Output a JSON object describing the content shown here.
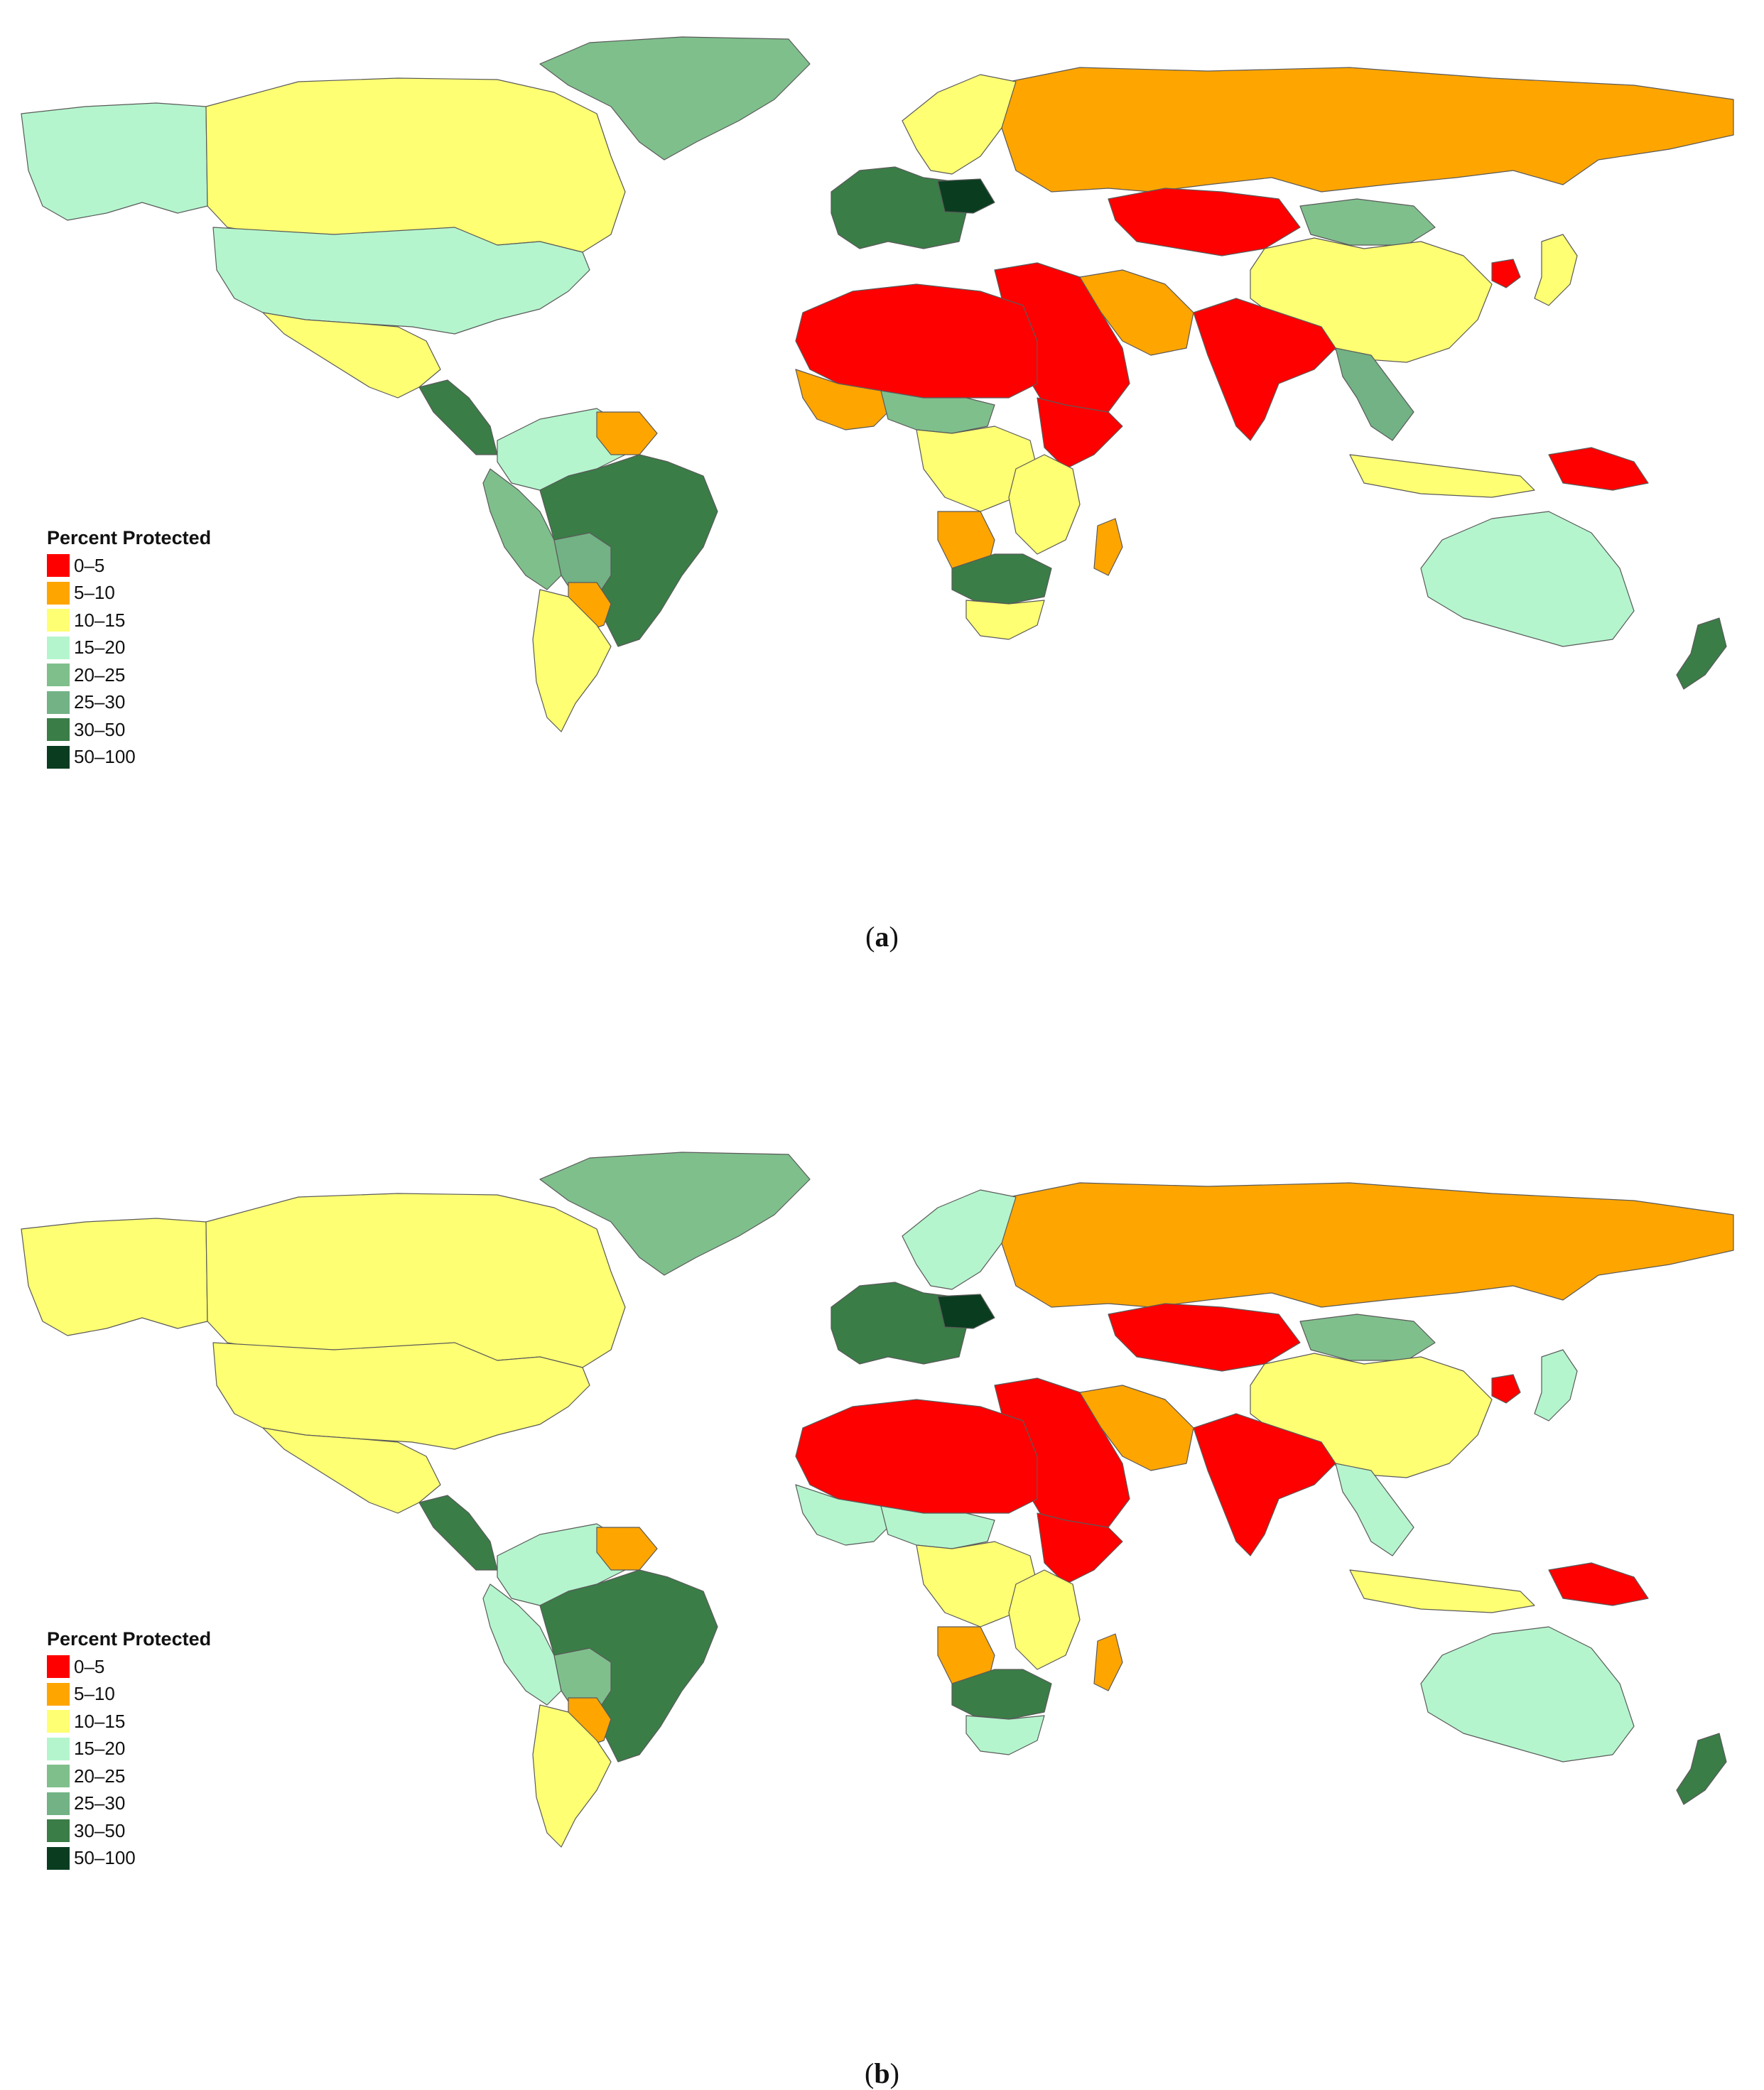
{
  "legend": {
    "title": "Percent Protected",
    "classes": [
      {
        "label": "0–5",
        "color": "#ff0000"
      },
      {
        "label": "5–10",
        "color": "#ffa500"
      },
      {
        "label": "10–15",
        "color": "#ffff73"
      },
      {
        "label": "15–20",
        "color": "#b4f5cd"
      },
      {
        "label": "20–25",
        "color": "#7fbf8c"
      },
      {
        "label": "25–30",
        "color": "#72b285"
      },
      {
        "label": "30–50",
        "color": "#3a7d47"
      },
      {
        "label": "50–100",
        "color": "#0a3d20"
      }
    ]
  },
  "panels": [
    {
      "id": "a",
      "label": "a",
      "regions": {
        "alaska": 3,
        "canada": 2,
        "usa": 3,
        "greenland": 4,
        "mexico": 2,
        "central_america": 6,
        "colombia_venezuela": 3,
        "peru_ecuador": 4,
        "brazil": 6,
        "bolivia": 5,
        "paraguay": 1,
        "argentina": 2,
        "guianas": 1,
        "russia": 1,
        "scandinavia": 2,
        "west_europe": 6,
        "poland": 7,
        "central_asia": 0,
        "mongolia": 4,
        "china": 2,
        "korea_north": 0,
        "japan": 2,
        "middle_east": 0,
        "iran": 1,
        "south_asia": 0,
        "southeast_asia": 5,
        "indonesia": 2,
        "new_guinea": 0,
        "australia": 3,
        "new_zealand": 6,
        "north_africa": 0,
        "west_africa": 1,
        "sahel": 4,
        "central_africa": 2,
        "east_africa": 2,
        "horn_of_africa": 0,
        "angola": 1,
        "southern_africa": 6,
        "south_africa": 2,
        "madagascar": 1
      }
    },
    {
      "id": "b",
      "label": "b",
      "regions": {
        "alaska": 2,
        "canada": 2,
        "usa": 2,
        "greenland": 4,
        "mexico": 2,
        "central_america": 6,
        "colombia_venezuela": 3,
        "peru_ecuador": 3,
        "brazil": 6,
        "bolivia": 4,
        "paraguay": 1,
        "argentina": 2,
        "guianas": 1,
        "russia": 1,
        "scandinavia": 3,
        "west_europe": 6,
        "poland": 7,
        "central_asia": 0,
        "mongolia": 4,
        "china": 2,
        "korea_north": 0,
        "japan": 3,
        "middle_east": 0,
        "iran": 1,
        "south_asia": 0,
        "southeast_asia": 3,
        "indonesia": 2,
        "new_guinea": 0,
        "australia": 3,
        "new_zealand": 6,
        "north_africa": 0,
        "west_africa": 3,
        "sahel": 3,
        "central_africa": 2,
        "east_africa": 2,
        "horn_of_africa": 0,
        "angola": 1,
        "southern_africa": 6,
        "south_africa": 3,
        "madagascar": 1
      }
    }
  ]
}
